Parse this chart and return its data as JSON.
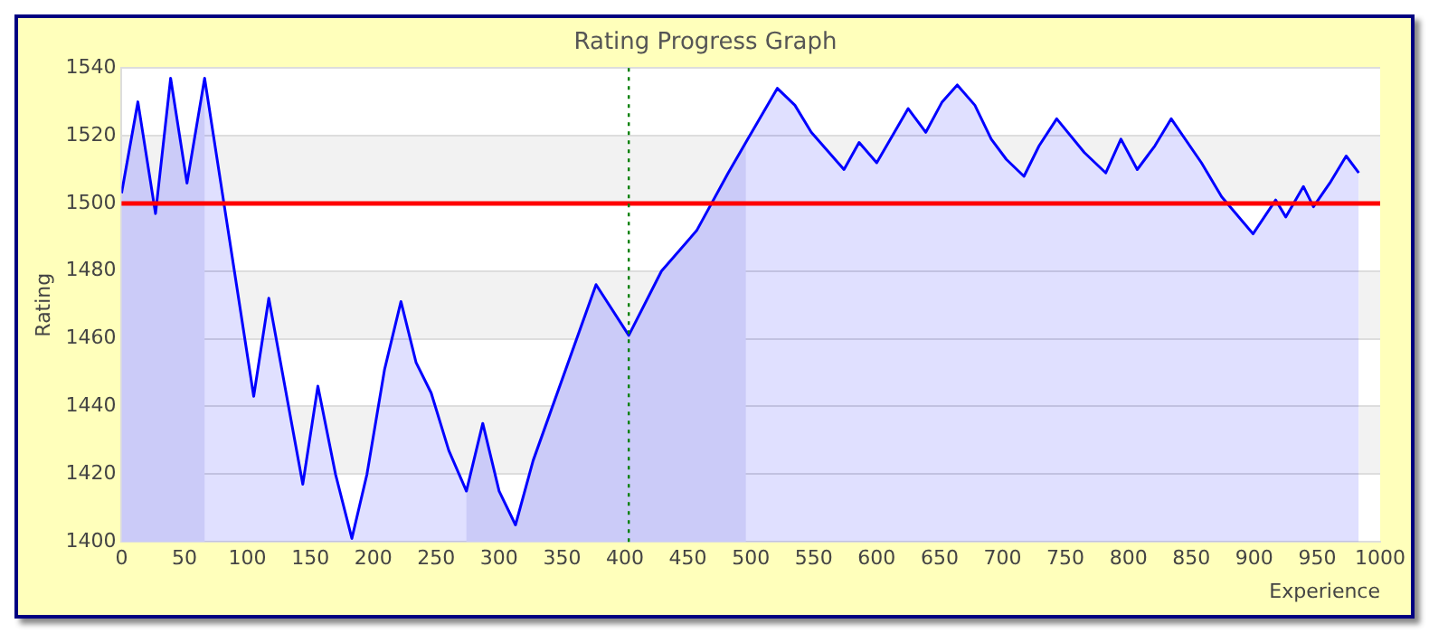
{
  "chart_data": {
    "type": "area",
    "title": "Rating Progress Graph",
    "xlabel": "Experience",
    "ylabel": "Rating",
    "series": [
      {
        "color": "#0000ff",
        "x": [
          0,
          13,
          27,
          39,
          52,
          66,
          105,
          117,
          144,
          156,
          170,
          183,
          195,
          209,
          222,
          234,
          246,
          260,
          274,
          287,
          300,
          313,
          327,
          377,
          403,
          429,
          457,
          482,
          496,
          521,
          535,
          548,
          574,
          586,
          600,
          625,
          639,
          652,
          664,
          678,
          691,
          703,
          717,
          729,
          743,
          765,
          782,
          794,
          807,
          821,
          834,
          858,
          874,
          899,
          917,
          925,
          939,
          947,
          960,
          973,
          983
        ],
        "values": [
          1503,
          1530,
          1497,
          1537,
          1506,
          1537,
          1443,
          1472,
          1417,
          1446,
          1420,
          1401,
          1420,
          1451,
          1471,
          1453,
          1444,
          1427,
          1415,
          1435,
          1415,
          1405,
          1424,
          1476,
          1461,
          1480,
          1492,
          1509,
          1518,
          1534,
          1529,
          1521,
          1510,
          1518,
          1512,
          1528,
          1521,
          1530,
          1535,
          1529,
          1519,
          1513,
          1508,
          1517,
          1525,
          1515,
          1509,
          1519,
          1510,
          1517,
          1525,
          1512,
          1502,
          1491,
          1501,
          1496,
          1505,
          1499,
          1506,
          1514,
          1509
        ]
      }
    ],
    "xlim": [
      0,
      1000
    ],
    "xticks": [
      0,
      50,
      100,
      150,
      200,
      250,
      300,
      350,
      400,
      450,
      500,
      550,
      600,
      650,
      700,
      750,
      800,
      850,
      900,
      950,
      1000
    ],
    "ylim": [
      1400,
      1540
    ],
    "yticks": [
      1400,
      1420,
      1440,
      1460,
      1480,
      1500,
      1520,
      1540
    ],
    "grid": "y",
    "legend": false,
    "marker": "none",
    "line_style": "solid",
    "ref_lines": [
      {
        "axis": "y",
        "value": 1500,
        "color": "#ff0000",
        "line_style": "solid"
      },
      {
        "axis": "x",
        "value": 403,
        "color": "#008000",
        "line_style": "dotted"
      }
    ],
    "bands": [
      {
        "axis": "y",
        "from": 1420,
        "to": 1440,
        "color": "#f2f2f2"
      },
      {
        "axis": "y",
        "from": 1460,
        "to": 1480,
        "color": "#f2f2f2"
      },
      {
        "axis": "y",
        "from": 1500,
        "to": 1520,
        "color": "#f2f2f2"
      },
      {
        "axis": "x",
        "from": 0,
        "to": 66,
        "color": "#e8e8f7"
      },
      {
        "axis": "x",
        "from": 274,
        "to": 496,
        "color": "#e8e8f7"
      }
    ]
  }
}
